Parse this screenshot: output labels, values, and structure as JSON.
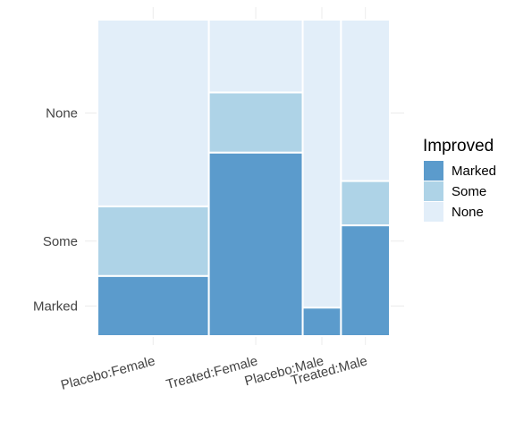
{
  "chart_data": {
    "type": "mosaic",
    "title": "",
    "xlabel": "",
    "ylabel": "",
    "x_categories": [
      "Placebo:Female",
      "Treated:Female",
      "Placebo:Male",
      "Treated:Male"
    ],
    "x_proportions": [
      0.381,
      0.321,
      0.131,
      0.167
    ],
    "y_levels": [
      "Marked",
      "Some",
      "None"
    ],
    "y_tick_labels": [
      "Marked",
      "Some",
      "None"
    ],
    "cells": [
      {
        "x": "Placebo:Female",
        "Marked": 0.19,
        "Some": 0.22,
        "None": 0.59
      },
      {
        "x": "Treated:Female",
        "Marked": 0.58,
        "Some": 0.19,
        "None": 0.23
      },
      {
        "x": "Placebo:Male",
        "Marked": 0.09,
        "Some": 0.0,
        "None": 0.91
      },
      {
        "x": "Treated:Male",
        "Marked": 0.35,
        "Some": 0.14,
        "None": 0.51
      }
    ],
    "colors": {
      "Marked": "#5b9bcc",
      "Some": "#aed3e7",
      "None": "#e2eef9"
    },
    "legend": {
      "title": "Improved",
      "position": "right",
      "entries": [
        "Marked",
        "Some",
        "None"
      ]
    },
    "grid": true
  }
}
